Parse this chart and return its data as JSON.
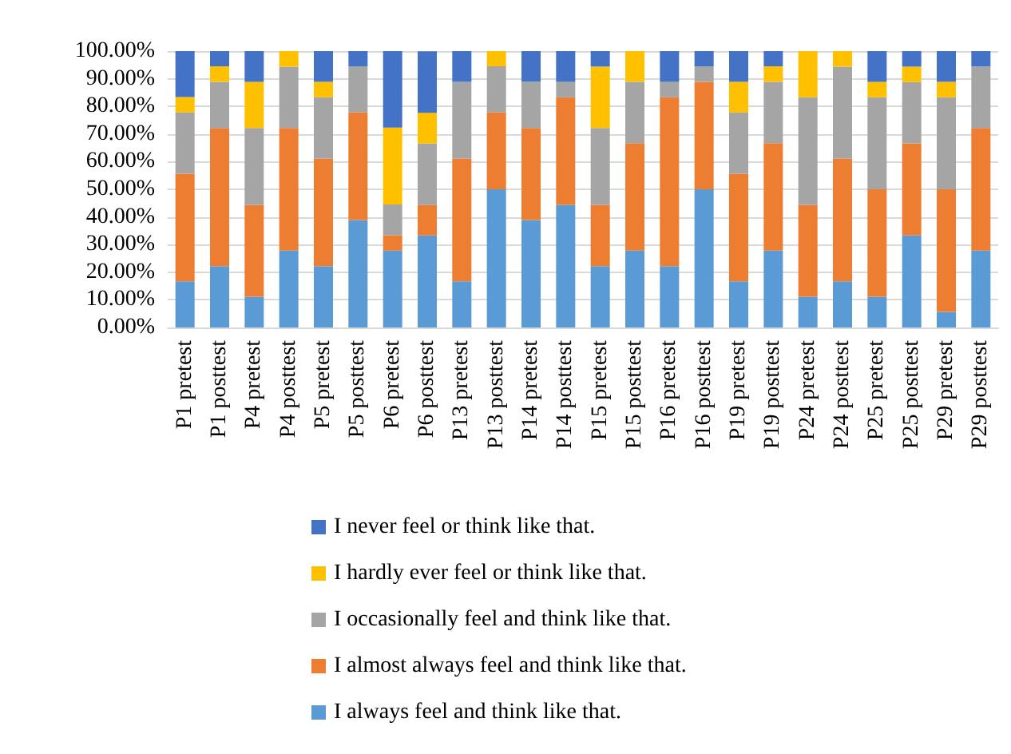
{
  "chart_data": {
    "type": "bar",
    "stacked": true,
    "categories": [
      "P1 pretest",
      "P1 posttest",
      "P4 pretest",
      "P4 posttest",
      "P5 pretest",
      "P5 posttest",
      "P6 pretest",
      "P6 posttest",
      "P13 pretest",
      "P13 posttest",
      "P14 pretest",
      "P14 posttest",
      "P15 pretest",
      "P15 posttest",
      "P16 pretest",
      "P16 posttest",
      "P19 pretest",
      "P19 posttest",
      "P24 pretest",
      "P24 posttest",
      "P25 pretest",
      "P25 posttest",
      "P29 pretest",
      "P29 posttest"
    ],
    "series": [
      {
        "name": "I always feel and think like that.",
        "color": "#5b9bd5",
        "values": [
          16.7,
          22.2,
          11.1,
          27.8,
          22.2,
          38.9,
          27.8,
          33.3,
          16.7,
          50.0,
          38.9,
          44.4,
          22.2,
          27.8,
          22.2,
          50.0,
          16.7,
          27.8,
          11.1,
          16.7,
          11.1,
          33.3,
          5.6,
          27.8
        ]
      },
      {
        "name": "I almost always feel and think like that.",
        "color": "#ed7d31",
        "values": [
          38.9,
          50.0,
          33.3,
          44.4,
          38.9,
          38.9,
          5.6,
          11.1,
          44.4,
          27.8,
          33.3,
          38.9,
          22.2,
          38.9,
          61.1,
          38.9,
          38.9,
          38.9,
          33.3,
          44.4,
          38.9,
          33.3,
          44.4,
          44.4
        ]
      },
      {
        "name": "I occasionally feel and think like that.",
        "color": "#a5a5a5",
        "values": [
          22.2,
          16.7,
          27.8,
          22.2,
          22.2,
          16.7,
          11.1,
          22.2,
          27.8,
          16.7,
          16.7,
          5.6,
          27.8,
          22.2,
          5.6,
          5.6,
          22.2,
          22.2,
          38.9,
          33.3,
          33.3,
          22.2,
          33.3,
          22.2
        ]
      },
      {
        "name": "I hardly ever feel or think like that.",
        "color": "#ffc000",
        "values": [
          5.6,
          5.6,
          16.7,
          5.6,
          5.6,
          0,
          27.8,
          11.1,
          0,
          5.6,
          0,
          0,
          22.2,
          11.1,
          0,
          0,
          11.1,
          5.6,
          16.7,
          5.6,
          5.6,
          5.6,
          5.6,
          0
        ]
      },
      {
        "name": "I never feel or think like that.",
        "color": "#4472c4",
        "values": [
          16.7,
          5.6,
          11.1,
          0,
          11.1,
          5.6,
          27.8,
          22.2,
          11.1,
          0,
          11.1,
          11.1,
          5.6,
          0,
          11.1,
          5.6,
          11.1,
          5.6,
          0,
          0,
          11.1,
          5.6,
          11.1,
          5.6
        ]
      }
    ],
    "ylim": [
      0,
      100
    ],
    "yticks": [
      {
        "value": 0,
        "label": "0.00%"
      },
      {
        "value": 10,
        "label": "10.00%"
      },
      {
        "value": 20,
        "label": "20.00%"
      },
      {
        "value": 30,
        "label": "30.00%"
      },
      {
        "value": 40,
        "label": "40.00%"
      },
      {
        "value": 50,
        "label": "50.00%"
      },
      {
        "value": 60,
        "label": "60.00%"
      },
      {
        "value": 70,
        "label": "70.00%"
      },
      {
        "value": 80,
        "label": "80.00%"
      },
      {
        "value": 90,
        "label": "90.00%"
      },
      {
        "value": 100,
        "label": "100.00%"
      }
    ],
    "grid": "y",
    "legend": "bottom"
  }
}
